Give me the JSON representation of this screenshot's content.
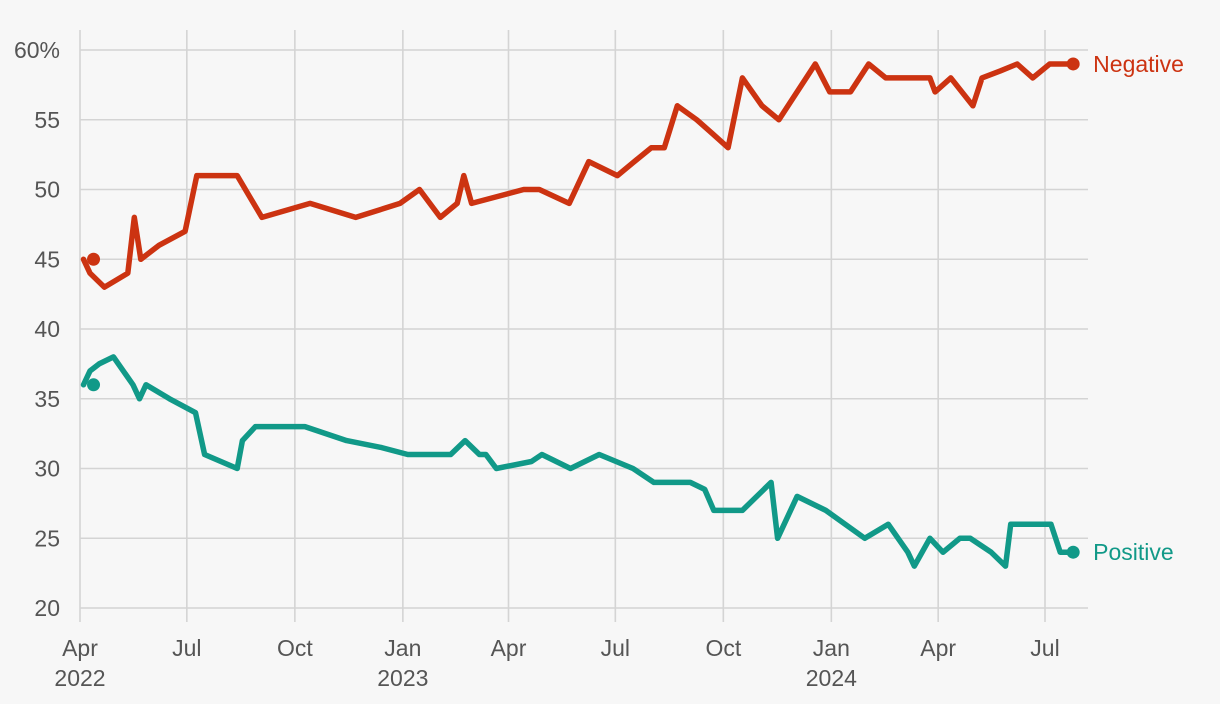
{
  "chart_data": {
    "type": "line",
    "y_tick_labels": [
      "60%",
      "55",
      "50",
      "45",
      "40",
      "35",
      "30",
      "25",
      "20"
    ],
    "y_ticks": [
      60,
      55,
      50,
      45,
      40,
      35,
      30,
      25,
      20
    ],
    "ylim": [
      20,
      61
    ],
    "x_ticks": [
      {
        "date": "2022-04-01",
        "month": "Apr",
        "year": "2022"
      },
      {
        "date": "2022-07-01",
        "month": "Jul",
        "year": ""
      },
      {
        "date": "2022-10-01",
        "month": "Oct",
        "year": ""
      },
      {
        "date": "2023-01-01",
        "month": "Jan",
        "year": "2023"
      },
      {
        "date": "2023-04-01",
        "month": "Apr",
        "year": ""
      },
      {
        "date": "2023-07-01",
        "month": "Jul",
        "year": ""
      },
      {
        "date": "2023-10-01",
        "month": "Oct",
        "year": ""
      },
      {
        "date": "2024-01-01",
        "month": "Jan",
        "year": "2024"
      },
      {
        "date": "2024-04-01",
        "month": "Apr",
        "year": ""
      },
      {
        "date": "2024-07-01",
        "month": "Jul",
        "year": ""
      }
    ],
    "xlim": [
      "2022-04-01",
      "2024-07-31"
    ],
    "grid": true,
    "series": [
      {
        "name": "Negative",
        "color": "#cc3311",
        "points": [
          [
            "2022-04-04",
            45
          ],
          [
            "2022-04-09",
            44
          ],
          [
            "2022-04-20",
            43
          ],
          [
            "2022-05-08",
            44
          ],
          [
            "2022-05-13",
            48
          ],
          [
            "2022-05-18",
            45
          ],
          [
            "2022-06-01",
            46
          ],
          [
            "2022-06-21",
            47
          ],
          [
            "2022-06-30",
            51
          ],
          [
            "2022-07-31",
            51
          ],
          [
            "2022-08-19",
            48
          ],
          [
            "2022-09-25",
            49
          ],
          [
            "2022-10-30",
            48
          ],
          [
            "2022-12-03",
            49
          ],
          [
            "2022-12-18",
            50
          ],
          [
            "2023-01-03",
            48
          ],
          [
            "2023-01-16",
            49
          ],
          [
            "2023-01-21",
            51
          ],
          [
            "2023-01-27",
            49
          ],
          [
            "2023-03-08",
            50
          ],
          [
            "2023-03-20",
            50
          ],
          [
            "2023-04-12",
            49
          ],
          [
            "2023-04-27",
            52
          ],
          [
            "2023-05-19",
            51
          ],
          [
            "2023-06-01",
            52
          ],
          [
            "2023-06-14",
            53
          ],
          [
            "2023-06-24",
            53
          ],
          [
            "2023-07-04",
            56
          ],
          [
            "2023-07-19",
            55
          ],
          [
            "2023-07-31",
            54
          ],
          [
            "2023-08-12",
            53
          ],
          [
            "2023-08-23",
            58
          ],
          [
            "2023-09-07",
            56
          ],
          [
            "2023-09-20",
            55
          ],
          [
            "2023-10-18",
            59
          ],
          [
            "2023-10-29",
            57
          ],
          [
            "2023-11-14",
            57
          ],
          [
            "2023-11-28",
            59
          ],
          [
            "2023-12-11",
            58
          ],
          [
            "2024-01-10",
            58
          ],
          [
            "2024-01-14",
            58
          ],
          [
            "2024-01-18",
            57
          ],
          [
            "2024-01-30",
            58
          ],
          [
            "2024-02-16",
            56
          ],
          [
            "2024-02-23",
            58
          ],
          [
            "2024-03-08",
            58.5
          ],
          [
            "2024-03-21",
            59
          ],
          [
            "2024-04-02",
            58
          ],
          [
            "2024-04-15",
            59
          ],
          [
            "2024-04-24",
            59
          ],
          [
            "2024-05-03",
            59
          ]
        ]
      },
      {
        "name": "Positive",
        "color": "#119988",
        "points": [
          [
            "2022-04-04",
            36
          ],
          [
            "2022-04-09",
            37
          ],
          [
            "2022-04-16",
            37.5
          ],
          [
            "2022-04-27",
            38
          ],
          [
            "2022-05-12",
            36
          ],
          [
            "2022-05-17",
            35
          ],
          [
            "2022-05-22",
            36
          ],
          [
            "2022-06-09",
            35
          ],
          [
            "2022-06-29",
            34
          ],
          [
            "2022-07-06",
            31
          ],
          [
            "2022-07-31",
            30
          ],
          [
            "2022-08-04",
            32
          ],
          [
            "2022-08-14",
            33
          ],
          [
            "2022-09-21",
            33
          ],
          [
            "2022-10-23",
            32
          ],
          [
            "2022-11-19",
            31.5
          ],
          [
            "2022-12-09",
            31
          ],
          [
            "2023-01-11",
            31
          ],
          [
            "2023-01-22",
            32
          ],
          [
            "2023-02-02",
            31
          ],
          [
            "2023-02-07",
            31
          ],
          [
            "2023-02-15",
            30
          ],
          [
            "2023-03-14",
            30.5
          ],
          [
            "2023-03-22",
            31
          ],
          [
            "2023-04-13",
            30
          ],
          [
            "2023-05-05",
            31
          ],
          [
            "2023-05-31",
            30
          ],
          [
            "2023-06-16",
            29
          ],
          [
            "2023-07-14",
            29
          ],
          [
            "2023-07-25",
            28.5
          ],
          [
            "2023-08-01",
            27
          ],
          [
            "2023-08-23",
            27
          ],
          [
            "2023-09-14",
            29
          ],
          [
            "2023-09-19",
            25
          ],
          [
            "2023-10-04",
            28
          ],
          [
            "2023-10-26",
            27
          ],
          [
            "2023-11-25",
            25
          ],
          [
            "2023-12-13",
            26
          ],
          [
            "2023-12-28",
            24
          ],
          [
            "2024-01-02",
            23
          ],
          [
            "2024-01-14",
            25
          ],
          [
            "2024-01-24",
            24
          ],
          [
            "2024-02-06",
            25
          ],
          [
            "2024-02-14",
            25
          ],
          [
            "2024-03-01",
            24
          ],
          [
            "2024-03-12",
            23
          ],
          [
            "2024-03-16",
            26
          ],
          [
            "2024-04-16",
            26
          ],
          [
            "2024-04-23",
            24
          ],
          [
            "2024-04-30",
            24
          ],
          [
            "2024-05-03",
            24
          ]
        ]
      }
    ]
  }
}
